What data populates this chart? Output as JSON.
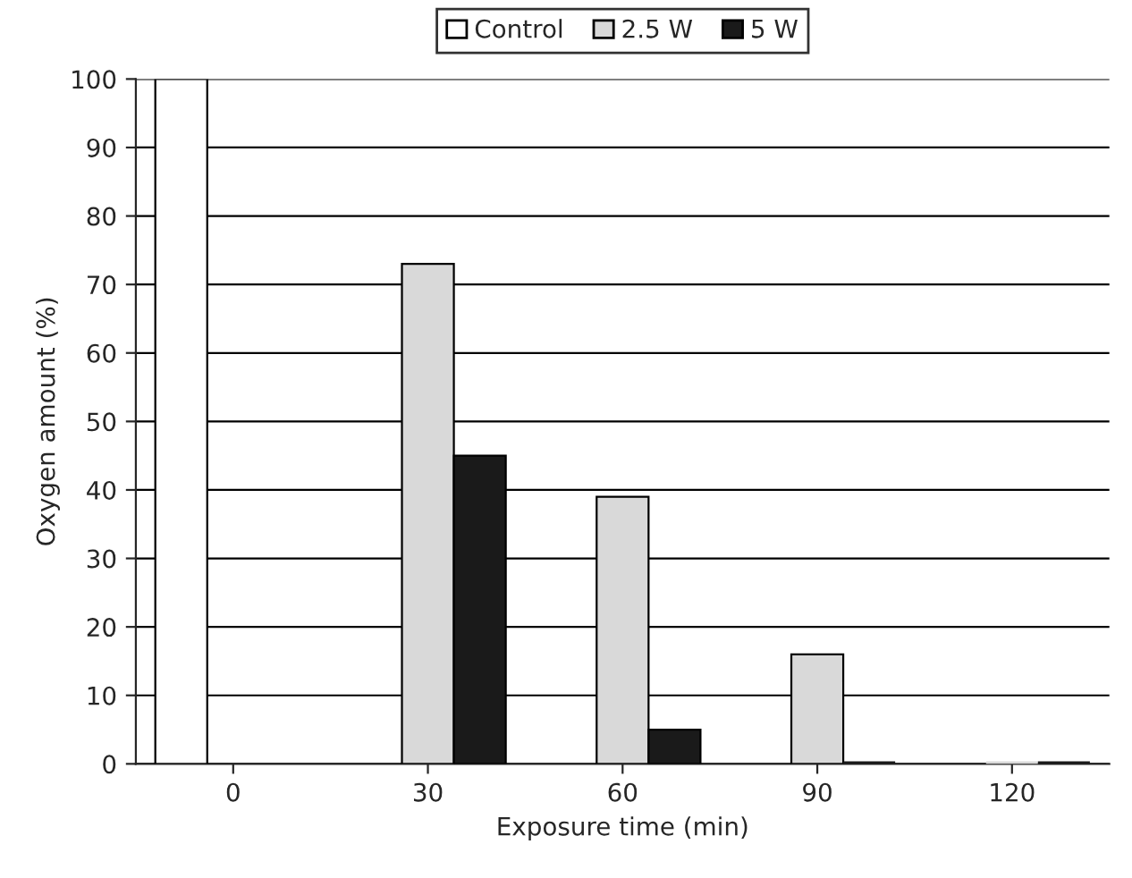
{
  "chart_data": {
    "type": "bar",
    "xlabel": "Exposure time (min)",
    "ylabel": "Oxygen amount (%)",
    "categories": [
      "0",
      "30",
      "60",
      "90",
      "120"
    ],
    "series": [
      {
        "name": "Control",
        "color": "#ffffff",
        "values": [
          100,
          null,
          null,
          null,
          null
        ]
      },
      {
        "name": "2.5 W",
        "color": "#d9d9d9",
        "values": [
          null,
          73,
          39,
          16,
          0
        ]
      },
      {
        "name": "5 W",
        "color": "#1a1a1a",
        "values": [
          null,
          45,
          5,
          0,
          0
        ]
      }
    ],
    "ylim": [
      0,
      100
    ],
    "yticks": [
      0,
      10,
      20,
      30,
      40,
      50,
      60,
      70,
      80,
      90,
      100
    ],
    "grid": "y",
    "legend": "top"
  }
}
